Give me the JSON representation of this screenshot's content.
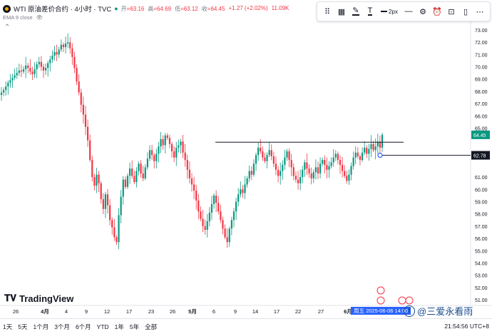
{
  "legend": {
    "title": "WTI 原油差价合约 · 4小时 · TVC",
    "open_label": "开",
    "open": "=63.16",
    "high_label": "高",
    "high": "=64.69",
    "low_label": "低",
    "low": "=63.12",
    "close_label": "收",
    "close": "=64.45",
    "change": "+1.27 (+2.02%)",
    "volume": "11.09K"
  },
  "indicator": {
    "label": "EMA 9 close"
  },
  "toolbar": {
    "items": [
      {
        "name": "pin-icon",
        "glyph": "⌖"
      },
      {
        "name": "layout-icon",
        "glyph": "▦"
      },
      {
        "name": "pencil-icon",
        "glyph": "✎"
      },
      {
        "name": "text-color-icon",
        "glyph": "T"
      },
      {
        "name": "line-style-icon",
        "glyph": "⋯"
      },
      {
        "name": "visibility-icon",
        "glyph": "◎"
      },
      {
        "name": "settings-icon",
        "glyph": "⚙"
      },
      {
        "name": "alert-icon",
        "glyph": "⏰"
      },
      {
        "name": "lock-icon",
        "glyph": "🔒"
      },
      {
        "name": "trash-icon",
        "glyph": "🗑"
      },
      {
        "name": "more-icon",
        "glyph": "⋯"
      }
    ],
    "width_label": "2px"
  },
  "price_axis": {
    "ticks": [
      "73.00",
      "72.00",
      "71.00",
      "70.00",
      "69.00",
      "68.00",
      "67.00",
      "66.00",
      "65.00",
      "61.00",
      "60.00",
      "59.00",
      "58.00",
      "57.00",
      "56.00",
      "55.00",
      "54.00",
      "53.00",
      "52.00",
      "51.00"
    ],
    "current_price": "64.45",
    "line_price": "62.78"
  },
  "time_axis": {
    "ticks": [
      "26",
      "4月",
      "4",
      "9",
      "12",
      "17",
      "23",
      "26",
      "5月",
      "6",
      "9",
      "14",
      "17",
      "22",
      "27",
      "6月",
      "9"
    ]
  },
  "date_flag": "周五 2025-06-06 14:00",
  "bottom": {
    "ranges": [
      "1天",
      "5天",
      "1个月",
      "3个月",
      "6个月",
      "YTD",
      "1年",
      "5年",
      "全部"
    ],
    "clock": "21:54:56 UTC+8"
  },
  "brand": {
    "name": "TradingView"
  },
  "watermark": {
    "text": "@三爱永看雨"
  },
  "colors": {
    "up": "#089981",
    "down": "#f23645",
    "accent": "#2962ff"
  },
  "chart_data": {
    "type": "candlestick",
    "title": "WTI 原油差价合约 · 4小时 · TVC",
    "xlabel": "",
    "ylabel": "",
    "ylim": [
      51,
      73.5
    ],
    "x_ticks": [
      "26",
      "4月",
      "4",
      "9",
      "12",
      "17",
      "23",
      "26",
      "5月",
      "6",
      "9",
      "14",
      "17",
      "22",
      "27",
      "6月",
      "9"
    ],
    "y_ticks": [
      51,
      52,
      53,
      54,
      55,
      56,
      57,
      58,
      59,
      60,
      61,
      62,
      63,
      64,
      65,
      66,
      67,
      68,
      69,
      70,
      71,
      72,
      73
    ],
    "series": [
      {
        "name": "close",
        "values": [
          67.9,
          68.1,
          68.4,
          68.7,
          68.9,
          69.1,
          69.3,
          69.5,
          69.7,
          69.6,
          69.8,
          70.1,
          69.9,
          69.6,
          69.4,
          69.8,
          70.2,
          70.4,
          70.0,
          69.7,
          69.9,
          70.3,
          70.6,
          70.9,
          71.2,
          71.0,
          71.4,
          71.8,
          71.6,
          71.9,
          72.0,
          71.5,
          70.8,
          69.9,
          68.8,
          67.9,
          66.9,
          66.1,
          65.1,
          64.0,
          62.4,
          61.0,
          60.3,
          61.2,
          60.5,
          59.2,
          58.4,
          59.6,
          58.7,
          57.5,
          56.9,
          56.1,
          55.7,
          57.9,
          59.4,
          60.8,
          60.2,
          61.1,
          61.7,
          61.1,
          60.6,
          61.5,
          62.1,
          61.3,
          60.9,
          61.8,
          62.5,
          63.2,
          62.8,
          62.3,
          62.9,
          63.5,
          64.1,
          63.6,
          64.4,
          64.2,
          63.7,
          63.1,
          62.6,
          63.4,
          63.6,
          63.9,
          63.0,
          62.4,
          61.6,
          60.9,
          60.4,
          59.9,
          59.1,
          58.2,
          57.6,
          57.0,
          56.7,
          57.4,
          58.1,
          58.8,
          59.5,
          58.9,
          58.2,
          57.5,
          56.8,
          56.1,
          55.7,
          56.8,
          57.5,
          58.2,
          59.0,
          59.6,
          60.0,
          59.7,
          60.4,
          60.9,
          61.5,
          61.2,
          62.1,
          62.8,
          63.4,
          63.1,
          62.6,
          62.3,
          62.8,
          63.2,
          62.7,
          62.1,
          61.6,
          61.1,
          61.5,
          62.0,
          62.6,
          63.1,
          62.4,
          61.8,
          61.1,
          60.8,
          60.5,
          61.0,
          61.6,
          62.2,
          61.7,
          61.3,
          60.9,
          61.4,
          61.8,
          61.3,
          62.1,
          62.4,
          62.0,
          61.6,
          61.9,
          62.2,
          62.6,
          62.9,
          62.4,
          62.0,
          61.5,
          61.1,
          60.7,
          61.2,
          61.9,
          62.6,
          63.0,
          62.7,
          62.4,
          63.0,
          63.4,
          62.9,
          63.3,
          63.7,
          63.2,
          63.5,
          63.9,
          63.4,
          64.45
        ]
      }
    ],
    "annotations": [
      {
        "type": "horizontal_line",
        "y": 63.85
      },
      {
        "type": "horizontal_ray",
        "y": 62.78
      }
    ]
  }
}
